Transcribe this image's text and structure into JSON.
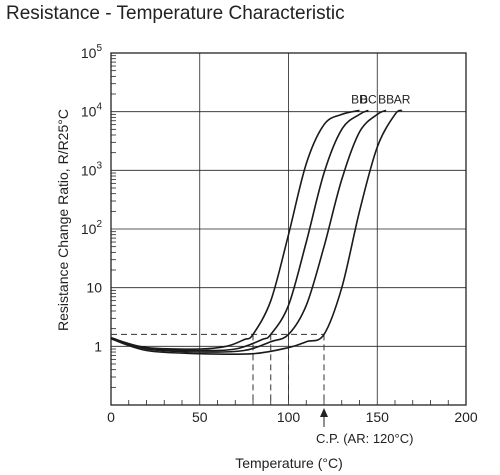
{
  "chart_data": {
    "type": "line",
    "title": "Resistance - Temperature Characteristic",
    "xlabel": "Temperature (°C)",
    "ylabel": "Resistance Change Ratio, R/R25°C",
    "xlim": [
      0,
      200
    ],
    "ylim_log10": [
      -1,
      5
    ],
    "y_scale": "log",
    "grid": true,
    "x_ticks": [
      {
        "value": 0,
        "label": "0"
      },
      {
        "value": 50,
        "label": "50"
      },
      {
        "value": 100,
        "label": "100"
      },
      {
        "value": 150,
        "label": "150"
      },
      {
        "value": 200,
        "label": "200"
      }
    ],
    "y_ticks": [
      {
        "exp": 0,
        "base": "1",
        "sup": ""
      },
      {
        "exp": 1,
        "base": "10",
        "sup": ""
      },
      {
        "exp": 2,
        "base": "10",
        "sup": "2"
      },
      {
        "exp": 3,
        "base": "10",
        "sup": "3"
      },
      {
        "exp": 4,
        "base": "10",
        "sup": "4"
      },
      {
        "exp": 5,
        "base": "10",
        "sup": "5"
      }
    ],
    "series": [
      {
        "name": "BD",
        "x": [
          0,
          20,
          50,
          65,
          75,
          80,
          90,
          100,
          110,
          120,
          130,
          140
        ],
        "y": [
          1.4,
          0.95,
          0.9,
          1.0,
          1.3,
          1.6,
          6,
          80,
          1300,
          6000,
          9000,
          10500
        ]
      },
      {
        "name": "BC",
        "x": [
          0,
          20,
          50,
          70,
          85,
          90,
          100,
          110,
          120,
          130,
          140,
          145
        ],
        "y": [
          1.4,
          0.92,
          0.85,
          0.9,
          1.3,
          1.6,
          5,
          60,
          900,
          5000,
          9000,
          10500
        ]
      },
      {
        "name": "BB",
        "x": [
          0,
          20,
          50,
          75,
          90,
          100,
          110,
          120,
          130,
          140,
          150,
          155
        ],
        "y": [
          1.4,
          0.9,
          0.8,
          0.85,
          1.2,
          1.6,
          5,
          50,
          700,
          4500,
          9000,
          10500
        ]
      },
      {
        "name": "AR",
        "x": [
          0,
          20,
          50,
          80,
          100,
          110,
          120,
          130,
          140,
          150,
          160,
          164
        ],
        "y": [
          1.35,
          0.85,
          0.75,
          0.75,
          0.95,
          1.2,
          1.6,
          10,
          200,
          2500,
          9000,
          10500
        ]
      }
    ],
    "reference_level": 1.6,
    "reference_x": [
      80,
      90,
      100,
      120
    ],
    "annotation": {
      "text": "C.P. (AR: 120°C)",
      "x": 120
    }
  }
}
